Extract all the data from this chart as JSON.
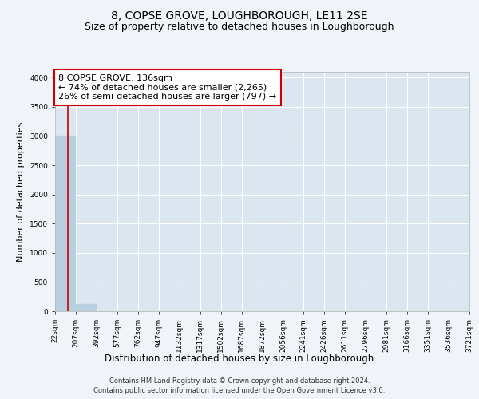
{
  "title": "8, COPSE GROVE, LOUGHBOROUGH, LE11 2SE",
  "subtitle": "Size of property relative to detached houses in Loughborough",
  "xlabel": "Distribution of detached houses by size in Loughborough",
  "ylabel": "Number of detached properties",
  "footer_line1": "Contains HM Land Registry data © Crown copyright and database right 2024.",
  "footer_line2": "Contains public sector information licensed under the Open Government Licence v3.0.",
  "bin_edges": [
    22,
    207,
    392,
    577,
    762,
    947,
    1132,
    1317,
    1502,
    1687,
    1872,
    2056,
    2241,
    2426,
    2611,
    2796,
    2981,
    3166,
    3351,
    3536,
    3721
  ],
  "bar_values": [
    3000,
    120,
    0,
    0,
    0,
    0,
    0,
    0,
    0,
    0,
    0,
    0,
    0,
    0,
    0,
    0,
    0,
    0,
    0,
    0
  ],
  "bar_color": "#b8cfe0",
  "bar_edge_color": "#b8cfe0",
  "background_color": "#f0f4f8",
  "plot_bg_color": "#dce6f0",
  "grid_color": "#ffffff",
  "ylim": [
    0,
    4100
  ],
  "yticks": [
    0,
    500,
    1000,
    1500,
    2000,
    2500,
    3000,
    3500,
    4000
  ],
  "property_size": 136,
  "vline_color": "#cc0000",
  "annotation_text_line1": "8 COPSE GROVE: 136sqm",
  "annotation_text_line2": "← 74% of detached houses are smaller (2,265)",
  "annotation_text_line3": "26% of semi-detached houses are larger (797) →",
  "annotation_box_color": "#cc0000",
  "annotation_bg": "#ffffff",
  "title_fontsize": 10,
  "subtitle_fontsize": 9,
  "tick_fontsize": 6.5,
  "ylabel_fontsize": 8,
  "xlabel_fontsize": 8.5,
  "annotation_fontsize": 8,
  "footer_fontsize": 6
}
